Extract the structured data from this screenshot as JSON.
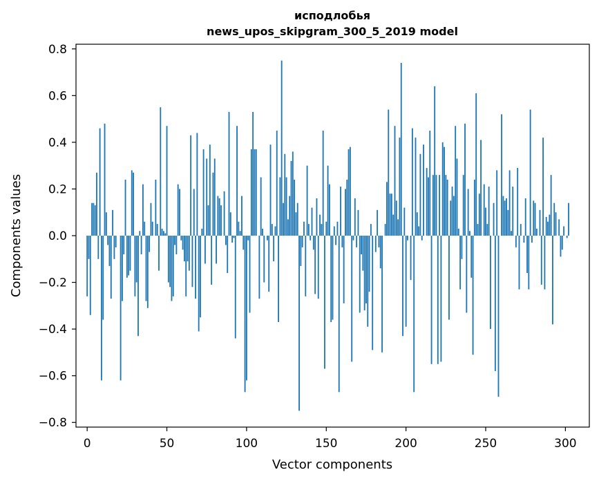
{
  "chart_data": {
    "type": "bar",
    "title": [
      "исподлобья",
      "news_upos_skipgram_300_5_2019 model"
    ],
    "xlabel": "Vector components",
    "ylabel": "Components values",
    "xlim": [
      -7,
      315
    ],
    "ylim": [
      -0.82,
      0.82
    ],
    "xticks": [
      0,
      50,
      100,
      150,
      200,
      250,
      300
    ],
    "xtick_labels": [
      "0",
      "50",
      "100",
      "150",
      "200",
      "250",
      "300"
    ],
    "yticks": [
      -0.8,
      -0.6,
      -0.4,
      -0.2,
      0.0,
      0.2,
      0.4,
      0.6,
      0.8
    ],
    "ytick_labels": [
      "−0.8",
      "−0.6",
      "−0.4",
      "−0.2",
      "0.0",
      "0.2",
      "0.4",
      "0.6",
      "0.8"
    ],
    "grid": false,
    "bar_color": "#1f77b4",
    "series": [
      {
        "x_start": 0,
        "values": [
          -0.26,
          -0.1,
          -0.34,
          0.14,
          0.14,
          0.13,
          0.27,
          -0.1,
          0.46,
          -0.62,
          -0.36,
          0.48,
          0.1,
          -0.04,
          -0.13,
          -0.27,
          0.11,
          -0.1,
          -0.05,
          0.0,
          0.0,
          -0.62,
          -0.28,
          -0.08,
          0.24,
          -0.18,
          -0.17,
          -0.15,
          0.28,
          0.27,
          -0.26,
          -0.2,
          -0.43,
          0.02,
          -0.08,
          0.22,
          0.06,
          -0.28,
          -0.31,
          -0.07,
          0.14,
          0.06,
          0.0,
          0.24,
          0.05,
          -0.15,
          0.55,
          0.03,
          0.02,
          0.01,
          0.47,
          -0.2,
          -0.22,
          -0.28,
          -0.26,
          -0.04,
          -0.08,
          0.22,
          0.2,
          -0.02,
          -0.06,
          -0.11,
          -0.26,
          -0.11,
          -0.15,
          0.43,
          -0.22,
          0.2,
          -0.27,
          0.44,
          -0.41,
          -0.35,
          0.03,
          0.37,
          -0.12,
          0.33,
          0.13,
          0.39,
          -0.21,
          0.27,
          0.33,
          -0.12,
          0.17,
          0.16,
          0.13,
          0.0,
          0.19,
          -0.04,
          -0.16,
          0.53,
          0.1,
          -0.03,
          -0.01,
          -0.44,
          0.47,
          0.06,
          0.02,
          0.17,
          -0.06,
          -0.67,
          -0.62,
          -0.02,
          -0.33,
          0.37,
          0.53,
          0.37,
          0.37,
          0.0,
          -0.27,
          0.25,
          0.03,
          -0.2,
          0.0,
          -0.02,
          -0.24,
          0.39,
          0.05,
          -0.11,
          0.04,
          0.45,
          -0.37,
          0.25,
          0.75,
          0.14,
          0.35,
          0.25,
          0.07,
          0.17,
          0.32,
          0.36,
          0.24,
          0.1,
          0.14,
          -0.75,
          -0.13,
          -0.05,
          0.06,
          -0.26,
          0.3,
          0.05,
          -0.02,
          0.12,
          -0.06,
          -0.25,
          0.16,
          -0.27,
          0.09,
          0.05,
          0.45,
          -0.57,
          0.06,
          0.3,
          0.22,
          -0.37,
          -0.36,
          0.04,
          -0.04,
          0.06,
          -0.67,
          0.21,
          -0.05,
          -0.29,
          0.2,
          0.24,
          0.37,
          0.38,
          -0.54,
          -0.02,
          0.16,
          -0.05,
          0.11,
          -0.33,
          -0.08,
          -0.15,
          -0.32,
          -0.29,
          -0.39,
          -0.24,
          0.05,
          -0.49,
          0.0,
          -0.07,
          0.11,
          -0.05,
          -0.14,
          -0.5,
          0.0,
          0.05,
          0.23,
          0.54,
          0.18,
          0.18,
          0.09,
          0.47,
          0.15,
          0.07,
          0.42,
          0.74,
          -0.43,
          0.12,
          -0.39,
          -0.02,
          0.0,
          -0.19,
          0.46,
          -0.67,
          0.42,
          0.1,
          0.04,
          0.35,
          -0.02,
          0.39,
          0.0,
          0.29,
          0.25,
          0.45,
          -0.55,
          0.26,
          0.64,
          0.26,
          -0.55,
          0.26,
          -0.54,
          0.4,
          0.38,
          0.26,
          0.24,
          -0.36,
          0.15,
          0.21,
          0.17,
          0.47,
          0.33,
          0.03,
          -0.23,
          -0.1,
          0.26,
          0.48,
          -0.33,
          0.2,
          0.02,
          -0.18,
          -0.51,
          0.24,
          0.61,
          0.05,
          0.18,
          0.41,
          0.0,
          0.22,
          0.12,
          0.05,
          0.21,
          -0.4,
          0.0,
          0.14,
          -0.58,
          0.28,
          -0.69,
          0.0,
          0.52,
          0.17,
          0.15,
          0.16,
          0.11,
          0.28,
          0.02,
          0.21,
          0.0,
          -0.05,
          0.29,
          -0.23,
          0.05,
          0.0,
          -0.03,
          0.16,
          -0.16,
          -0.23,
          0.54,
          -0.03,
          0.15,
          0.14,
          0.03,
          0.0,
          0.11,
          -0.21,
          0.42,
          -0.23,
          0.08,
          0.06,
          0.09,
          0.26,
          -0.38,
          0.14,
          0.1,
          0.0,
          0.07,
          -0.09,
          -0.06,
          0.04,
          0.0,
          -0.01,
          0.14
        ]
      }
    ]
  }
}
